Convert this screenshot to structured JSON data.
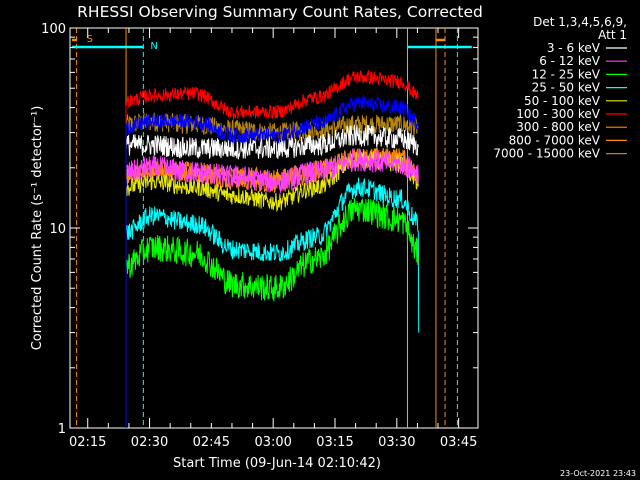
{
  "chart_data": {
    "type": "line",
    "title": "RHESSI Observing Summary Count Rates, Corrected",
    "xlabel": "Start Time (09-Jun-14 02:10:42)",
    "ylabel": "Corrected Count Rate (s⁻¹ detector⁻¹)",
    "y_scale": "log",
    "ylim": [
      1,
      100
    ],
    "xlim_minutes_after_02_10_42": [
      0,
      99
    ],
    "x_ticks": [
      "02:15",
      "02:30",
      "02:45",
      "03:00",
      "03:15",
      "03:30",
      "03:45"
    ],
    "x_tick_minutes": [
      4.3,
      19.3,
      34.3,
      49.3,
      64.3,
      79.3,
      94.3
    ],
    "y_ticks": [
      "1",
      "10",
      "100"
    ],
    "y_tick_values": [
      1,
      10,
      100
    ],
    "legend_header": [
      "Det 1,3,4,5,6,9,",
      "Att 1"
    ],
    "legend_position": "right",
    "data_start_minute": 13.6,
    "data_end_minute": 84.6,
    "series": [
      {
        "name": "3 - 6 keV",
        "color": "#ffffff",
        "t": [
          13.6,
          20,
          30,
          40,
          50,
          60,
          70,
          80,
          84.6
        ],
        "values": [
          26,
          26,
          25,
          25,
          25,
          26,
          29,
          28,
          26
        ],
        "noise": 0.055
      },
      {
        "name": "6 - 12 keV",
        "color": "#ff3cff",
        "t": [
          13.6,
          20,
          30,
          40,
          50,
          60,
          70,
          80,
          84.6
        ],
        "values": [
          19,
          20,
          19,
          18,
          17,
          19,
          22,
          21,
          19
        ],
        "noise": 0.06
      },
      {
        "name": "12 - 25 keV",
        "color": "#00ff00",
        "t": [
          13.6,
          20,
          30,
          40,
          50,
          60,
          70,
          80,
          84.6
        ],
        "values": [
          6.5,
          8,
          7.5,
          5.2,
          5.0,
          7,
          12.5,
          11,
          7.5
        ],
        "noise": 0.07
      },
      {
        "name": "25 - 50 keV",
        "color": "#00ffff",
        "t": [
          13.6,
          20,
          30,
          40,
          50,
          60,
          70,
          80,
          84.6
        ],
        "values": [
          9.5,
          11.5,
          10.5,
          7.8,
          7.5,
          9,
          16,
          14,
          10.5
        ],
        "noise": 0.05
      },
      {
        "name": "50 - 100 keV",
        "color": "#e8e800",
        "t": [
          13.6,
          20,
          30,
          40,
          50,
          60,
          70,
          80,
          84.6
        ],
        "values": [
          16,
          17,
          16,
          14.5,
          13.5,
          16,
          22,
          21,
          17
        ],
        "noise": 0.045
      },
      {
        "name": "100 - 300 keV",
        "color": "#ff0000",
        "t": [
          13.6,
          20,
          30,
          40,
          50,
          60,
          70,
          80,
          84.6
        ],
        "values": [
          43,
          46,
          47,
          38,
          38,
          45,
          57,
          54,
          46
        ],
        "noise": 0.035
      },
      {
        "name": "300 - 800 keV",
        "color": "#ff8c00",
        "t": [
          13.6,
          20,
          30,
          40,
          50,
          60,
          70,
          80,
          84.6
        ],
        "values": [
          19,
          20,
          19.5,
          18.5,
          18,
          20,
          23,
          23,
          19
        ],
        "noise": 0.04
      },
      {
        "name": "800 - 7000 keV",
        "color": "#ff8c00",
        "t": [
          13.6,
          20,
          30,
          40,
          50,
          60,
          70,
          80,
          84.6
        ],
        "values": [
          18,
          19,
          18.5,
          17,
          16.5,
          18.5,
          22,
          22,
          18
        ],
        "noise": 0.04
      },
      {
        "name": "7000 - 15000 keV",
        "color": "#b8860b",
        "t": [
          13.6,
          20,
          30,
          40,
          50,
          60,
          70,
          80,
          84.6
        ],
        "values": [
          33,
          34,
          33,
          31,
          30,
          31,
          33,
          33,
          32
        ],
        "noise": 0.05
      }
    ],
    "blue_line_extra": {
      "t": [
        13.6,
        20,
        30,
        40,
        50,
        60,
        70,
        80,
        84.6
      ],
      "values": [
        32,
        34,
        34,
        29,
        29,
        33,
        42,
        40,
        34
      ]
    },
    "flag_bars": [
      {
        "label": "S",
        "color": "#ff8c00",
        "start_minute": 0.5,
        "end_minute": 1.6
      },
      {
        "label": "N",
        "color": "#00ffff",
        "start_minute": 0.5,
        "end_minute": 17.8
      },
      {
        "label": "",
        "color": "#ff8c00",
        "start_minute": 88.8,
        "end_minute": 91
      },
      {
        "label": "",
        "color": "#00ffff",
        "start_minute": 81.9,
        "end_minute": 97.5
      }
    ],
    "vertical_lines": [
      {
        "minute": 1.6,
        "color": "#ff8c00",
        "style": "dashed"
      },
      {
        "minute": 13.6,
        "color": "#ff8c00",
        "style": "solid"
      },
      {
        "minute": 17.8,
        "color": "#00ffff",
        "style": "dashed"
      },
      {
        "minute": 81.9,
        "color": "#00ffff",
        "style": "solid"
      },
      {
        "minute": 88.8,
        "color": "#ff8c00",
        "style": "solid"
      },
      {
        "minute": 91.0,
        "color": "#ff8c00",
        "style": "dashed"
      },
      {
        "minute": 94.0,
        "color": "#00ffff",
        "style": "dashed"
      }
    ],
    "footer_timestamp": "23-Oct-2021 23:43"
  }
}
